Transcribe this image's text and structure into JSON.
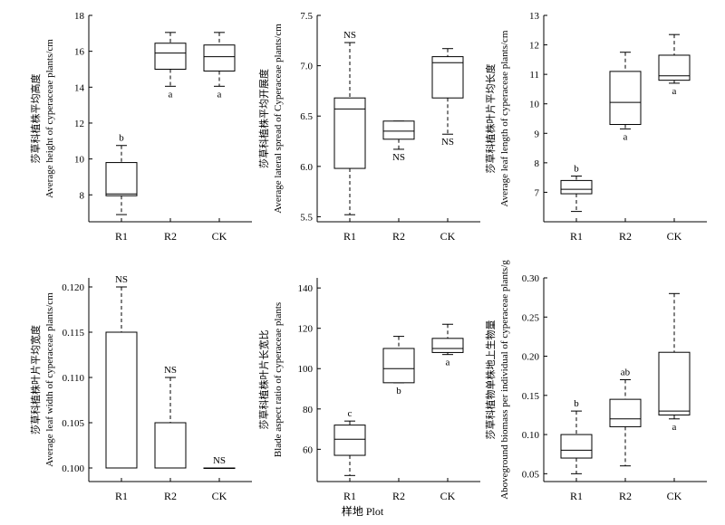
{
  "figure": {
    "x_title": "样地 Plot"
  },
  "chart_data": [
    {
      "type": "box",
      "ylabel_cn": "莎草科植株平均高度",
      "ylabel_en": "Average height of cyperaceae plants/cm",
      "ylim": [
        6.5,
        18
      ],
      "yticks": [
        8,
        10,
        12,
        14,
        16,
        18
      ],
      "categories": [
        "R1",
        "R2",
        "CK"
      ],
      "boxes": [
        {
          "whisker_low": 6.9,
          "q1": 7.95,
          "median": 8.05,
          "q3": 9.8,
          "whisker_high": 10.75,
          "label": "b",
          "label_pos": "top"
        },
        {
          "whisker_low": 14.05,
          "q1": 15.0,
          "median": 15.9,
          "q3": 16.45,
          "whisker_high": 17.05,
          "label": "a",
          "label_pos": "bottom"
        },
        {
          "whisker_low": 14.05,
          "q1": 14.9,
          "median": 15.7,
          "q3": 16.35,
          "whisker_high": 17.05,
          "label": "a",
          "label_pos": "bottom"
        }
      ]
    },
    {
      "type": "box",
      "ylabel_cn": "莎草科植株平均开展度",
      "ylabel_en": "Average lateral spread of Cyperaceae plants/cm",
      "ylim": [
        5.45,
        7.5
      ],
      "yticks": [
        5.5,
        6.0,
        6.5,
        7.0,
        7.5
      ],
      "tick_decimals": 1,
      "categories": [
        "R1",
        "R2",
        "CK"
      ],
      "boxes": [
        {
          "whisker_low": 5.52,
          "q1": 5.98,
          "median": 6.57,
          "q3": 6.68,
          "whisker_high": 7.23,
          "label": "NS",
          "label_pos": "top"
        },
        {
          "whisker_low": 6.17,
          "q1": 6.27,
          "median": 6.35,
          "q3": 6.45,
          "whisker_high": 6.45,
          "label": "NS",
          "label_pos": "bottom"
        },
        {
          "whisker_low": 6.32,
          "q1": 6.68,
          "median": 7.03,
          "q3": 7.09,
          "whisker_high": 7.17,
          "label": "NS",
          "label_pos": "bottom"
        }
      ]
    },
    {
      "type": "box",
      "ylabel_cn": "莎草科植株叶片平均长度",
      "ylabel_en": "Average leaf length of cyperaceae plants/cm",
      "ylim": [
        6.0,
        13
      ],
      "yticks": [
        7,
        8,
        9,
        10,
        11,
        12,
        13
      ],
      "categories": [
        "R1",
        "R2",
        "CK"
      ],
      "boxes": [
        {
          "whisker_low": 6.35,
          "q1": 6.95,
          "median": 7.1,
          "q3": 7.4,
          "whisker_high": 7.55,
          "label": "b",
          "label_pos": "top"
        },
        {
          "whisker_low": 9.15,
          "q1": 9.3,
          "median": 10.05,
          "q3": 11.1,
          "whisker_high": 11.75,
          "label": "a",
          "label_pos": "bottom"
        },
        {
          "whisker_low": 10.7,
          "q1": 10.8,
          "median": 10.95,
          "q3": 11.65,
          "whisker_high": 12.35,
          "label": "a",
          "label_pos": "bottom"
        }
      ]
    },
    {
      "type": "box",
      "ylabel_cn": "莎草科植株叶片平均宽度",
      "ylabel_en": "Average leaf width of cyperaceae plants/cm",
      "ylim": [
        0.0985,
        0.121
      ],
      "yticks": [
        0.1,
        0.105,
        0.11,
        0.115,
        0.12
      ],
      "tick_decimals": 3,
      "categories": [
        "R1",
        "R2",
        "CK"
      ],
      "boxes": [
        {
          "whisker_low": 0.1,
          "q1": 0.1,
          "median": 0.1,
          "q3": 0.115,
          "whisker_high": 0.12,
          "label": "NS",
          "label_pos": "top"
        },
        {
          "whisker_low": 0.1,
          "q1": 0.1,
          "median": 0.1,
          "q3": 0.105,
          "whisker_high": 0.11,
          "label": "NS",
          "label_pos": "top"
        },
        {
          "whisker_low": 0.1,
          "q1": 0.1,
          "median": 0.1,
          "q3": 0.1,
          "whisker_high": 0.1,
          "label": "NS",
          "label_pos": "top"
        }
      ]
    },
    {
      "type": "box",
      "ylabel_cn": "莎草科植株叶片长宽比",
      "ylabel_en": "Blade aspect ratio of cyperaceae plants",
      "ylim": [
        44,
        145
      ],
      "yticks": [
        60,
        80,
        100,
        120,
        140
      ],
      "categories": [
        "R1",
        "R2",
        "CK"
      ],
      "boxes": [
        {
          "whisker_low": 47,
          "q1": 57,
          "median": 65,
          "q3": 72,
          "whisker_high": 74,
          "label": "c",
          "label_pos": "top"
        },
        {
          "whisker_low": 93,
          "q1": 93,
          "median": 100,
          "q3": 110,
          "whisker_high": 116,
          "label": "b",
          "label_pos": "bottom"
        },
        {
          "whisker_low": 107,
          "q1": 108,
          "median": 110,
          "q3": 115,
          "whisker_high": 122,
          "label": "a",
          "label_pos": "bottom"
        }
      ]
    },
    {
      "type": "box",
      "ylabel_cn": "莎草科植物单株地上生物量",
      "ylabel_en": "Aboveground biomass per individual of cyperaceae plants/g",
      "ylim": [
        0.04,
        0.3
      ],
      "yticks": [
        0.05,
        0.1,
        0.15,
        0.2,
        0.25,
        0.3
      ],
      "tick_decimals": 2,
      "categories": [
        "R1",
        "R2",
        "CK"
      ],
      "boxes": [
        {
          "whisker_low": 0.05,
          "q1": 0.07,
          "median": 0.08,
          "q3": 0.1,
          "whisker_high": 0.13,
          "label": "b",
          "label_pos": "top"
        },
        {
          "whisker_low": 0.06,
          "q1": 0.11,
          "median": 0.12,
          "q3": 0.145,
          "whisker_high": 0.17,
          "label": "ab",
          "label_pos": "top"
        },
        {
          "whisker_low": 0.12,
          "q1": 0.125,
          "median": 0.13,
          "q3": 0.205,
          "whisker_high": 0.28,
          "label": "a",
          "label_pos": "bottom"
        }
      ]
    }
  ]
}
